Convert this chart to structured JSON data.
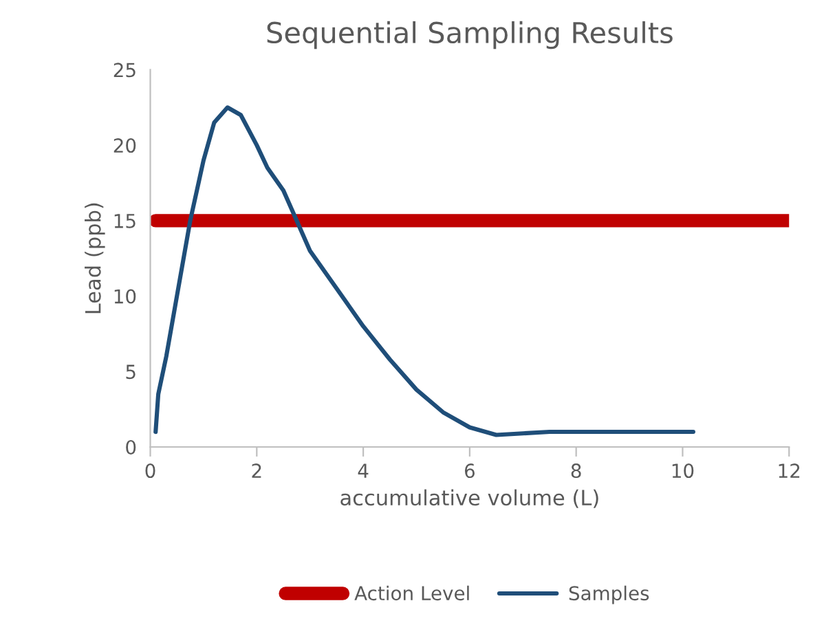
{
  "chart_data": {
    "type": "line",
    "title": "Sequential Sampling Results",
    "xlabel": "accumulative volume (L)",
    "ylabel": "Lead (ppb)",
    "series": [
      {
        "name": "Action Level",
        "color": "#c00000",
        "x": [
          0.1,
          12
        ],
        "values": [
          15,
          15
        ]
      },
      {
        "name": "Samples",
        "color": "#1f4e79",
        "x": [
          0.1,
          0.15,
          0.3,
          0.5,
          0.75,
          1.0,
          1.2,
          1.45,
          1.7,
          2.0,
          2.2,
          2.5,
          2.75,
          3.0,
          3.5,
          4.0,
          4.5,
          5.0,
          5.5,
          6.0,
          6.5,
          7.0,
          7.5,
          8.0,
          9.0,
          10.2
        ],
        "values": [
          1,
          3.5,
          6,
          10,
          15,
          19,
          21.5,
          22.5,
          22,
          20,
          18.5,
          17,
          15,
          13,
          10.5,
          8,
          5.8,
          3.8,
          2.3,
          1.3,
          0.8,
          0.9,
          1,
          1,
          1,
          1
        ]
      }
    ],
    "xlim": [
      0,
      12
    ],
    "xticks": [
      0,
      2,
      4,
      6,
      8,
      10,
      12
    ],
    "ylim": [
      0,
      25
    ],
    "yticks": [
      0,
      5,
      10,
      15,
      20,
      25
    ],
    "grid": false,
    "legend": "bottom",
    "marker": "none",
    "line_style": "solid"
  }
}
